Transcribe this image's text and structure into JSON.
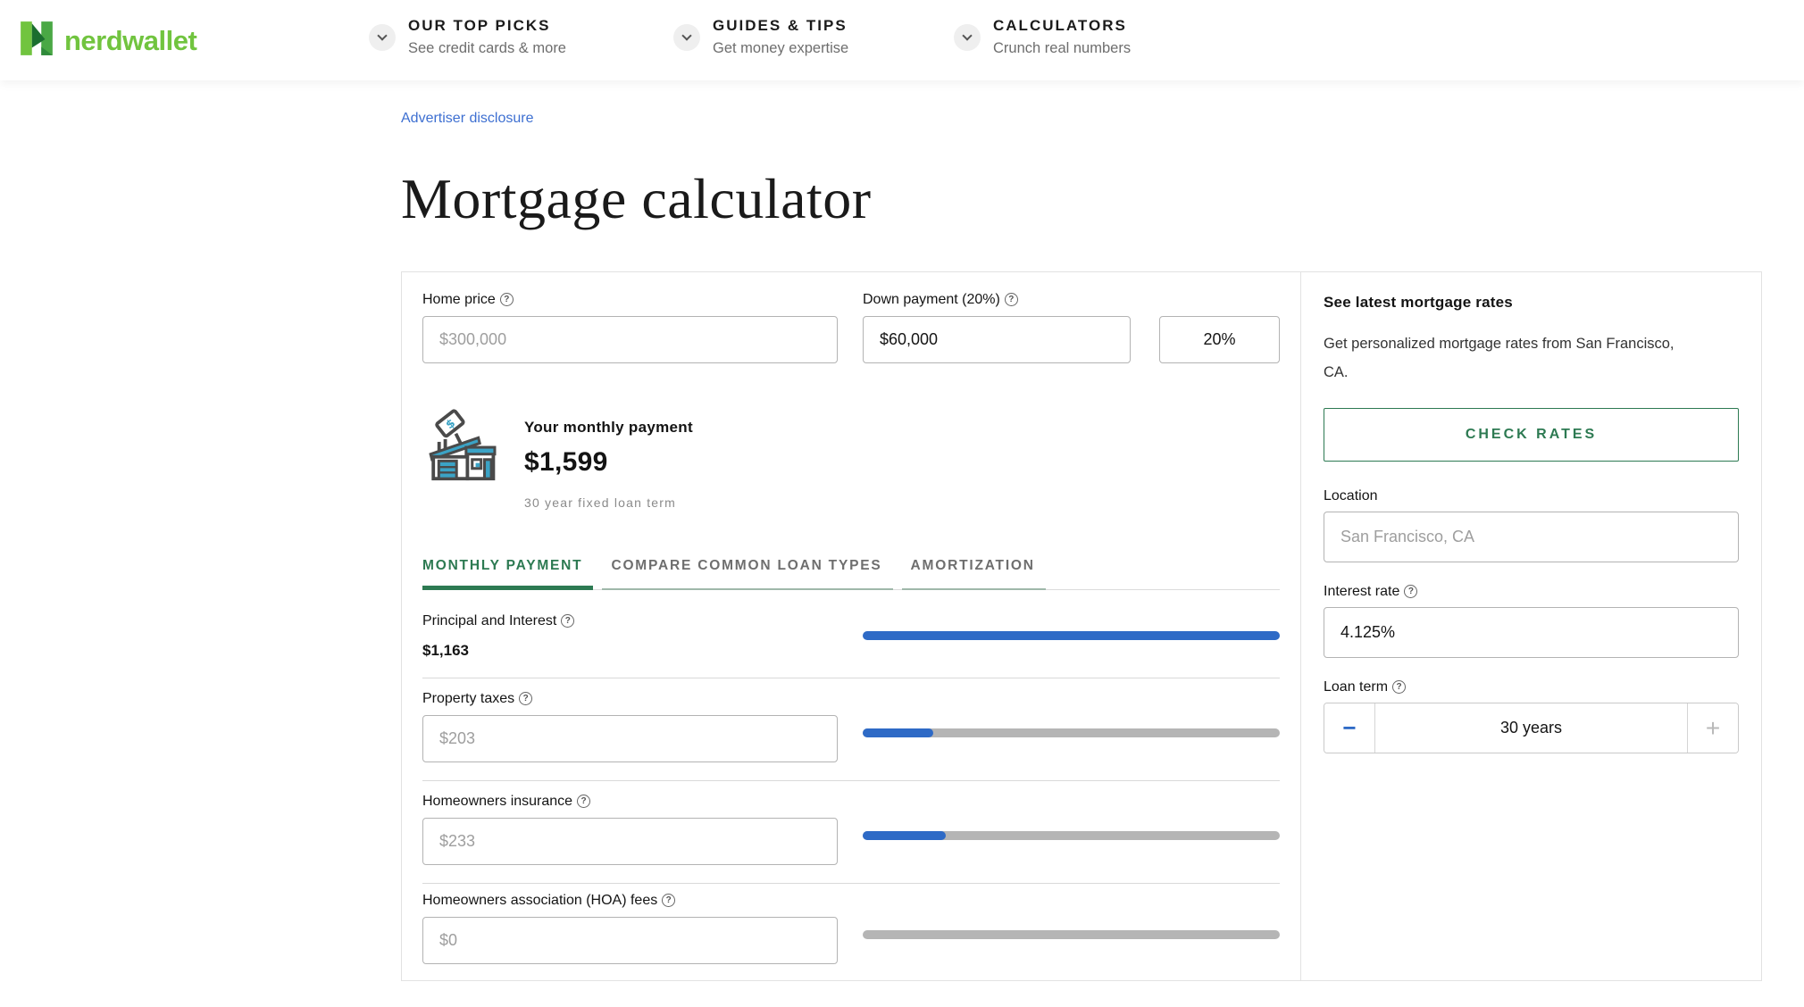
{
  "colors": {
    "brand_green": "#71c43f",
    "dark_green": "#2d7a52",
    "link_blue": "#3d6fd1",
    "bar_blue": "#2e6ac6",
    "bar_track_gray": "#b5b5b5",
    "inactive_tab_underline": "#9fb8aa"
  },
  "icons": {
    "help": "?"
  },
  "header": {
    "logo_text": "nerdwallet",
    "nav": [
      {
        "title": "OUR TOP PICKS",
        "subtitle": "See credit cards & more"
      },
      {
        "title": "GUIDES & TIPS",
        "subtitle": "Get money expertise"
      },
      {
        "title": "CALCULATORS",
        "subtitle": "Crunch real numbers"
      }
    ]
  },
  "page": {
    "advertiser_disclosure_label": "Advertiser disclosure",
    "title": "Mortgage calculator"
  },
  "calculator": {
    "home_price": {
      "label": "Home price",
      "placeholder": "$300,000"
    },
    "down_payment": {
      "label": "Down payment (20%)",
      "amount_value": "$60,000",
      "percent_value": "20%"
    },
    "monthly_payment": {
      "heading": "Your monthly payment",
      "amount": "$1,599",
      "term_note": "30 year fixed loan term"
    },
    "tabs": [
      {
        "label": "MONTHLY PAYMENT",
        "active": true
      },
      {
        "label": "COMPARE COMMON LOAN TYPES",
        "active": false
      },
      {
        "label": "AMORTIZATION",
        "active": false
      }
    ],
    "breakdown": [
      {
        "label": "Principal and Interest",
        "value": "$1,163",
        "bar_percent": 100
      },
      {
        "label": "Property taxes",
        "placeholder": "$203",
        "bar_percent": 17
      },
      {
        "label": "Homeowners insurance",
        "placeholder": "$233",
        "bar_percent": 20
      },
      {
        "label": "Homeowners association (HOA) fees",
        "placeholder": "$0",
        "bar_percent": 0
      }
    ]
  },
  "sidebar": {
    "heading": "See latest mortgage rates",
    "description": "Get personalized mortgage rates from San Francisco, CA.",
    "check_rates_label": "CHECK RATES",
    "location": {
      "label": "Location",
      "placeholder": "San Francisco, CA"
    },
    "interest_rate": {
      "label": "Interest rate",
      "value": "4.125%"
    },
    "loan_term": {
      "label": "Loan term",
      "value": "30 years",
      "minus_label": "−",
      "plus_label": "+"
    }
  }
}
